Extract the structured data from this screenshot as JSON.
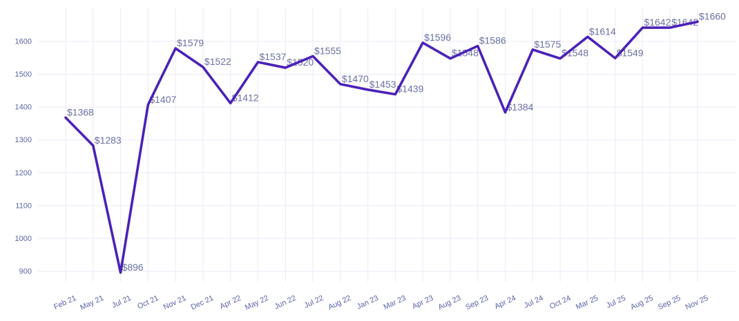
{
  "chart_data": {
    "type": "line",
    "title": "",
    "xlabel": "",
    "ylabel": "",
    "legend_position": "none",
    "grid": true,
    "categories": [
      "Feb 21",
      "May 21",
      "Jul 21",
      "Oct 21",
      "Nov 21",
      "Dec 21",
      "Apr 22",
      "May 22",
      "Jun 22",
      "Jul 22",
      "Aug 22",
      "Jan 23",
      "Mar 23",
      "Apr 23",
      "Aug 23",
      "Sep 23",
      "Apr 24",
      "Jul 24",
      "Oct 24",
      "Mar 25",
      "Jul 25",
      "Aug 25",
      "Sep 25",
      "Nov 25"
    ],
    "values": [
      1368,
      1283,
      896,
      1407,
      1579,
      1522,
      1412,
      1537,
      1520,
      1555,
      1470,
      1453,
      1439,
      1596,
      1548,
      1586,
      1384,
      1575,
      1548,
      1614,
      1549,
      1642,
      1642,
      1660
    ],
    "point_labels": [
      "$1368",
      "$1283",
      "$896",
      "$1407",
      "$1579",
      "$1522",
      "$1412",
      "$1537",
      "$1520",
      "$1555",
      "$1470",
      "$1453",
      "$1439",
      "$1596",
      "$1548",
      "$1586",
      "$1384",
      "$1575",
      "$1548",
      "$1614",
      "$1549",
      "$1642",
      "$1642",
      "$1660"
    ],
    "yticks": [
      900,
      1000,
      1100,
      1200,
      1300,
      1400,
      1500,
      1600
    ],
    "ylim": [
      870,
      1700
    ],
    "colors": {
      "line": "#4b21b8",
      "grid": "#f0edf8",
      "axis_tick_label": "#5b63a8",
      "point_label": "#6a70a3",
      "background": "#ffffff"
    }
  }
}
